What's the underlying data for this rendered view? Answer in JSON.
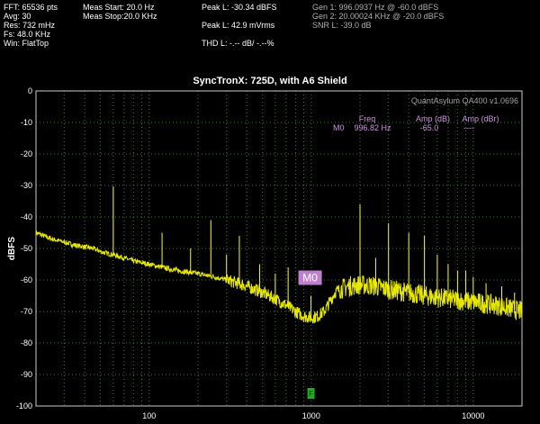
{
  "header": {
    "col1": [
      "FFT: 65536 pts",
      "Avg: 30",
      "Res: 732 mHz",
      "Fs: 48.0 KHz",
      "Win: FlatTop"
    ],
    "col2": [
      "Meas Start: 20.0 Hz",
      "Meas Stop:20.0 KHz"
    ],
    "col3": [
      "Peak L: -30.34 dBFS",
      "",
      "Peak L: 42.9 mVrms",
      "",
      "THD L: -.-- dB/ -.--%"
    ],
    "col4": [
      "Gen 1: 996.0937 Hz @ -60.0  dBFS",
      "Gen 2: 20.00024 KHz @ -20.0  dBFS",
      "SNR L: -39.0 dB"
    ]
  },
  "marker_table": {
    "headers": [
      "Freq",
      "Amp (dB)",
      "Amp (dBr)"
    ],
    "row": [
      "M0",
      "996.82 Hz",
      "-65.0",
      "----"
    ]
  },
  "brand": "QuantAsylum QA400 v1.0696",
  "marker_label": "M0",
  "marker_flag_label": "F",
  "colors": {
    "trace": "#ffff00",
    "grid": "#3a7a3a",
    "marker_box": "#c080d0",
    "marker_text": "#d090e0",
    "flag_box": "#22aa22"
  },
  "chart_data": {
    "type": "line",
    "title": "SyncTronX: 725D, with A6 Shield",
    "xlabel": "",
    "ylabel": "dBFS",
    "x_scale": "log",
    "xlim": [
      20,
      20000
    ],
    "ylim": [
      -100,
      0
    ],
    "x_ticks": [
      100,
      1000,
      10000
    ],
    "x_tick_labels": [
      "100",
      "1000",
      "10000"
    ],
    "y_ticks": [
      0,
      -10,
      -20,
      -30,
      -40,
      -50,
      -60,
      -70,
      -80,
      -90,
      -100
    ],
    "y_tick_labels": [
      "0",
      "-10",
      "-20",
      "-30",
      "-40",
      "-50",
      "-60",
      "-70",
      "-80",
      "-90",
      "-100"
    ],
    "grid": true,
    "series": [
      {
        "x": [
          20,
          25,
          30,
          35,
          40,
          45,
          50,
          60,
          70,
          80,
          100,
          120,
          150,
          200,
          250,
          300,
          350,
          400,
          500,
          600,
          700,
          800,
          900,
          1000,
          1100,
          1200,
          1300,
          1400,
          1500,
          1700,
          2000,
          2500,
          3000,
          4000,
          5000,
          7000,
          10000,
          14000,
          20000
        ],
        "y": [
          -45,
          -47,
          -48,
          -49,
          -49.5,
          -50,
          -51,
          -52,
          -53,
          -54,
          -55,
          -56,
          -57,
          -58,
          -59,
          -60,
          -61,
          -62,
          -64,
          -66,
          -68,
          -70,
          -71.5,
          -72,
          -71.5,
          -70,
          -67,
          -64,
          -63,
          -62,
          -61.5,
          -62,
          -63,
          -64,
          -65,
          -66,
          -67,
          -68,
          -70
        ]
      }
    ],
    "spikes": [
      {
        "x": 60,
        "y": -30.3
      },
      {
        "x": 120,
        "y": -45
      },
      {
        "x": 180,
        "y": -50
      },
      {
        "x": 240,
        "y": -41
      },
      {
        "x": 300,
        "y": -52
      },
      {
        "x": 360,
        "y": -46
      },
      {
        "x": 480,
        "y": -55
      },
      {
        "x": 600,
        "y": -58
      },
      {
        "x": 720,
        "y": -56
      },
      {
        "x": 996.8,
        "y": -65
      },
      {
        "x": 2000,
        "y": -36
      },
      {
        "x": 2500,
        "y": -53
      },
      {
        "x": 3000,
        "y": -42
      },
      {
        "x": 4000,
        "y": -45
      },
      {
        "x": 5000,
        "y": -46
      },
      {
        "x": 6000,
        "y": -52
      },
      {
        "x": 7000,
        "y": -55
      },
      {
        "x": 8000,
        "y": -57
      },
      {
        "x": 9000,
        "y": -57
      },
      {
        "x": 10000,
        "y": -59
      },
      {
        "x": 12000,
        "y": -61
      },
      {
        "x": 15000,
        "y": -62
      },
      {
        "x": 18000,
        "y": -64
      }
    ],
    "markers": [
      {
        "name": "M0",
        "x": 996.82,
        "y": -65.0
      }
    ]
  }
}
